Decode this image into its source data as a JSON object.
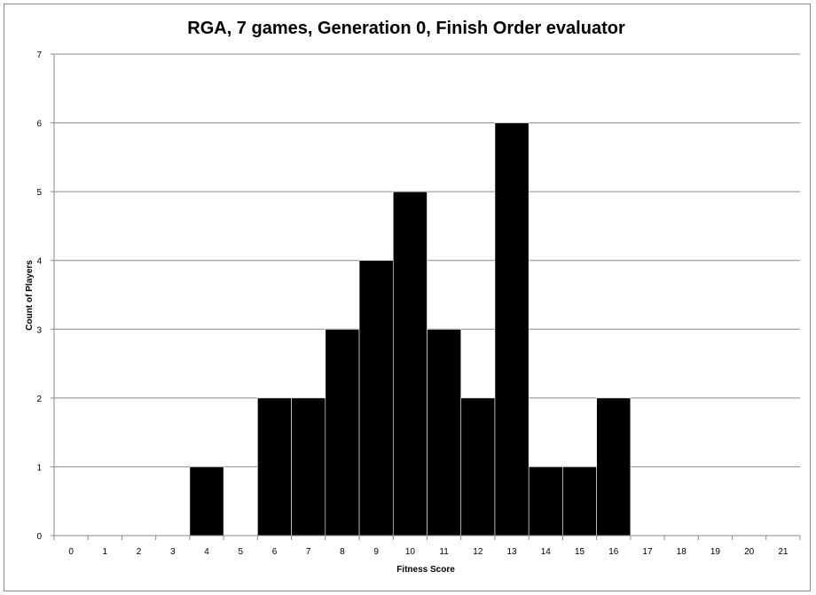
{
  "chart_data": {
    "type": "bar",
    "title": "RGA, 7 games, Generation 0, Finish Order evaluator",
    "xlabel": "Fitness Score",
    "ylabel": "Count of Players",
    "categories": [
      "0",
      "1",
      "2",
      "3",
      "4",
      "5",
      "6",
      "7",
      "8",
      "9",
      "10",
      "11",
      "12",
      "13",
      "14",
      "15",
      "16",
      "17",
      "18",
      "19",
      "20",
      "21"
    ],
    "values": [
      0,
      0,
      0,
      0,
      1,
      0,
      2,
      2,
      3,
      4,
      5,
      3,
      2,
      6,
      1,
      1,
      2,
      0,
      0,
      0,
      0,
      0
    ],
    "ylim": [
      0,
      7
    ],
    "yticks": [
      "0",
      "1",
      "2",
      "3",
      "4",
      "5",
      "6",
      "7"
    ],
    "grid": true,
    "bar_color": "#000000",
    "legend": "none"
  }
}
